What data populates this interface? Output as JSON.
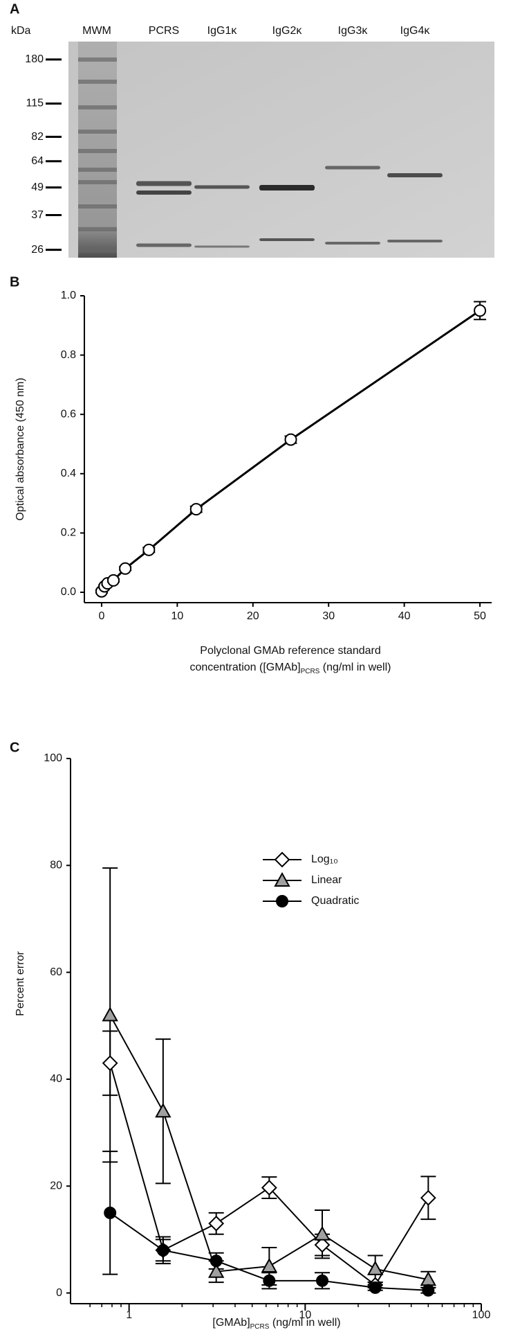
{
  "chart_data": [
    {
      "type": "gel",
      "panel_label": "A",
      "y_label": "kDa",
      "categories": [
        "MWM",
        "PCRS",
        "IgG1κ",
        "IgG2κ",
        "IgG3κ",
        "IgG4κ"
      ],
      "log_scale": true,
      "ylim": [
        24,
        216
      ],
      "yticks": [
        180,
        115,
        82,
        64,
        49,
        37,
        26
      ]
    },
    {
      "type": "scatter",
      "panel_label": "B",
      "y_label": "Optical absorbance (450 nm)",
      "x_label": [
        "Polyclonal GMAb reference standard",
        "concentration ([GMAb]",
        "PCRS",
        " (ng/ml in well)"
      ],
      "xlim": [
        -1,
        51
      ],
      "xticks": [
        0,
        10,
        20,
        30,
        40,
        50
      ],
      "ylim": [
        -0.035,
        1.0
      ],
      "yticks": [
        {
          "value": 0,
          "label": "0.0"
        },
        0.2,
        0.4,
        0.6,
        0.8,
        {
          "value": 1,
          "label": "1.0"
        }
      ],
      "series": [
        {
          "color": "#000000",
          "x": [
            0,
            0.39,
            0.78,
            1.56,
            3.125,
            6.25,
            12.5,
            25,
            50
          ],
          "values": [
            0.003,
            0.02,
            0.03,
            0.04,
            0.08,
            0.143,
            0.28,
            0.515,
            0.95
          ],
          "errors": [
            0.005,
            0.005,
            0.005,
            0.005,
            0.006,
            0.008,
            0.01,
            0.012,
            0.03
          ]
        }
      ]
    },
    {
      "type": "line",
      "panel_label": "C",
      "y_label": "Percent error",
      "x_label": [
        "[GMAb]",
        "PCRS",
        " (ng/ml in well)"
      ],
      "log_scale": true,
      "xlim": [
        0.5,
        100
      ],
      "xticks": [
        1,
        10,
        100
      ],
      "ylim": [
        -2,
        100
      ],
      "yticks": [
        0,
        20,
        40,
        60,
        80,
        100
      ],
      "x": [
        0.78,
        1.56,
        3.125,
        6.25,
        12.5,
        25,
        50
      ],
      "series": [
        {
          "name": "Log₁₀",
          "color": "#ffffff",
          "marker": "diamond",
          "values": [
            43,
            8,
            13,
            19.7,
            9,
            1.5,
            17.8
          ],
          "errors": [
            6,
            2,
            2,
            2,
            2,
            0.5,
            4
          ]
        },
        {
          "name": "Linear",
          "color": "#a0a0a0",
          "marker": "triangle",
          "values": [
            52,
            34,
            4,
            5,
            11,
            4.5,
            2.5
          ],
          "errors": [
            27.5,
            13.5,
            2,
            3.5,
            4.5,
            2.5,
            1.5
          ]
        },
        {
          "name": "Quadratic",
          "color": "#000000",
          "marker": "circle",
          "values": [
            15,
            8,
            6,
            2.3,
            2.3,
            1,
            0.5
          ],
          "errors": [
            11.5,
            2.5,
            1.5,
            1.5,
            1.5,
            0.5,
            0.5
          ]
        }
      ]
    }
  ]
}
